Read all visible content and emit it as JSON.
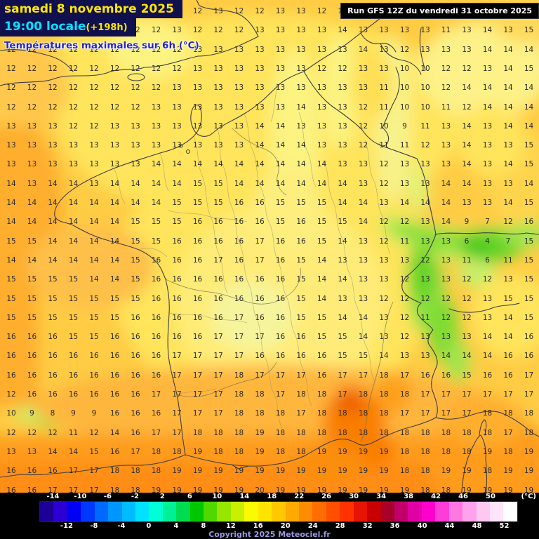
{
  "header": {
    "date": "samedi 8 novembre 2025",
    "time": "19:00 locale",
    "offset": "(+198h)",
    "subtitle": "Températures maximales sur 6h (°C)",
    "run": "Run GFS 12Z du vendredi 31 octobre 2025"
  },
  "legend": {
    "unit": "(°C)",
    "copyright": "Copyright 2025 Meteociel.fr",
    "range_min": -16,
    "range_max": 54,
    "top_labels": [
      -14,
      -10,
      -6,
      -2,
      2,
      6,
      10,
      14,
      18,
      22,
      26,
      30,
      34,
      38,
      42,
      46,
      50
    ],
    "bottom_labels": [
      -12,
      -8,
      -4,
      0,
      4,
      8,
      12,
      16,
      20,
      24,
      28,
      32,
      36,
      40,
      44,
      48,
      52
    ],
    "colors": [
      "#1c0096",
      "#2a00d4",
      "#0000f5",
      "#0038ff",
      "#006aff",
      "#0096ff",
      "#00bcff",
      "#00e2ff",
      "#00ffd4",
      "#00f096",
      "#00dc50",
      "#00c800",
      "#50d800",
      "#96e600",
      "#c8f000",
      "#fafa00",
      "#ffe400",
      "#ffc800",
      "#ffaa00",
      "#ff8c00",
      "#ff6e00",
      "#ff5000",
      "#ff3200",
      "#e61400",
      "#c80000",
      "#a8002a",
      "#c00068",
      "#e000a6",
      "#ff00cc",
      "#ff3cd6",
      "#ff78e2",
      "#ffa2ec",
      "#ffc8f2",
      "#ffe4fa",
      "#ffffff"
    ]
  },
  "grid": {
    "unit": "°C",
    "rows": [
      [
        12,
        13,
        12,
        13,
        12,
        12,
        12,
        12,
        12,
        12,
        13,
        12,
        12,
        13,
        13,
        12,
        13,
        13,
        13,
        13,
        13,
        13,
        13,
        13,
        14,
        13
      ],
      [
        13,
        12,
        12,
        12,
        12,
        12,
        12,
        12,
        13,
        12,
        12,
        12,
        13,
        13,
        13,
        13,
        14,
        13,
        13,
        13,
        13,
        11,
        13,
        14,
        13,
        15
      ],
      [
        12,
        12,
        12,
        12,
        12,
        12,
        12,
        12,
        12,
        13,
        13,
        13,
        13,
        13,
        13,
        13,
        13,
        14,
        13,
        12,
        13,
        13,
        13,
        14,
        14,
        14
      ],
      [
        12,
        12,
        12,
        12,
        12,
        12,
        12,
        12,
        12,
        13,
        13,
        13,
        13,
        13,
        13,
        12,
        12,
        13,
        13,
        10,
        10,
        12,
        12,
        13,
        14,
        15
      ],
      [
        12,
        12,
        12,
        12,
        12,
        12,
        12,
        12,
        13,
        13,
        13,
        13,
        13,
        13,
        13,
        13,
        13,
        13,
        11,
        10,
        10,
        12,
        14,
        14,
        14,
        14
      ],
      [
        12,
        12,
        12,
        12,
        12,
        12,
        12,
        13,
        13,
        13,
        13,
        13,
        13,
        13,
        14,
        13,
        13,
        12,
        11,
        10,
        10,
        11,
        12,
        14,
        14,
        14
      ],
      [
        13,
        13,
        13,
        12,
        12,
        13,
        13,
        13,
        13,
        13,
        13,
        13,
        14,
        14,
        13,
        13,
        13,
        12,
        10,
        9,
        11,
        13,
        14,
        13,
        14,
        14
      ],
      [
        13,
        13,
        13,
        13,
        13,
        13,
        13,
        13,
        13,
        13,
        13,
        13,
        14,
        14,
        14,
        13,
        13,
        12,
        11,
        11,
        12,
        13,
        14,
        13,
        13,
        15
      ],
      [
        13,
        13,
        13,
        13,
        13,
        13,
        13,
        14,
        14,
        14,
        14,
        14,
        14,
        14,
        14,
        14,
        13,
        13,
        12,
        13,
        13,
        13,
        14,
        13,
        14,
        15
      ],
      [
        14,
        13,
        14,
        14,
        13,
        14,
        14,
        14,
        14,
        15,
        15,
        14,
        14,
        14,
        14,
        14,
        14,
        13,
        12,
        13,
        13,
        14,
        14,
        13,
        13,
        14
      ],
      [
        14,
        14,
        14,
        14,
        14,
        14,
        14,
        14,
        15,
        15,
        15,
        16,
        16,
        15,
        15,
        15,
        14,
        14,
        13,
        14,
        14,
        14,
        13,
        13,
        14,
        15
      ],
      [
        14,
        14,
        14,
        14,
        14,
        14,
        15,
        15,
        15,
        16,
        16,
        16,
        16,
        15,
        16,
        15,
        15,
        14,
        12,
        12,
        13,
        14,
        9,
        7,
        12,
        16
      ],
      [
        15,
        15,
        14,
        14,
        14,
        14,
        15,
        15,
        16,
        16,
        16,
        16,
        17,
        16,
        16,
        15,
        14,
        13,
        12,
        11,
        13,
        13,
        6,
        4,
        7,
        15
      ],
      [
        14,
        14,
        14,
        14,
        14,
        14,
        15,
        16,
        16,
        16,
        17,
        16,
        17,
        16,
        15,
        14,
        13,
        13,
        13,
        13,
        12,
        13,
        11,
        6,
        11,
        15
      ],
      [
        15,
        15,
        15,
        15,
        14,
        14,
        15,
        16,
        16,
        16,
        16,
        16,
        16,
        16,
        15,
        14,
        14,
        13,
        13,
        12,
        13,
        13,
        12,
        12,
        13,
        15
      ],
      [
        15,
        15,
        15,
        15,
        15,
        15,
        15,
        16,
        16,
        16,
        16,
        16,
        16,
        16,
        15,
        14,
        13,
        13,
        12,
        12,
        12,
        12,
        12,
        13,
        15,
        15
      ],
      [
        15,
        15,
        15,
        15,
        15,
        15,
        16,
        16,
        16,
        16,
        16,
        17,
        16,
        16,
        15,
        15,
        14,
        14,
        13,
        12,
        11,
        12,
        12,
        13,
        14,
        15
      ],
      [
        16,
        16,
        16,
        15,
        15,
        16,
        16,
        16,
        16,
        16,
        17,
        17,
        17,
        16,
        16,
        15,
        15,
        14,
        13,
        12,
        13,
        13,
        13,
        14,
        14,
        16
      ],
      [
        16,
        16,
        16,
        16,
        16,
        16,
        16,
        16,
        17,
        17,
        17,
        17,
        16,
        16,
        16,
        16,
        15,
        15,
        14,
        13,
        13,
        14,
        14,
        14,
        16,
        16
      ],
      [
        16,
        16,
        16,
        16,
        16,
        16,
        16,
        16,
        17,
        17,
        17,
        18,
        17,
        17,
        17,
        16,
        17,
        17,
        18,
        17,
        16,
        16,
        15,
        16,
        16,
        17
      ],
      [
        12,
        16,
        16,
        16,
        16,
        16,
        16,
        17,
        17,
        17,
        17,
        18,
        18,
        17,
        18,
        18,
        17,
        18,
        18,
        18,
        17,
        17,
        17,
        17,
        17,
        17
      ],
      [
        10,
        9,
        8,
        9,
        9,
        16,
        16,
        16,
        17,
        17,
        17,
        18,
        18,
        18,
        17,
        18,
        18,
        18,
        18,
        17,
        17,
        17,
        17,
        18,
        18,
        18
      ],
      [
        12,
        12,
        12,
        11,
        12,
        14,
        16,
        17,
        17,
        18,
        18,
        18,
        19,
        18,
        18,
        18,
        18,
        18,
        18,
        18,
        18,
        18,
        18,
        18,
        17,
        18
      ],
      [
        13,
        13,
        14,
        14,
        15,
        16,
        17,
        18,
        18,
        19,
        18,
        18,
        19,
        18,
        18,
        19,
        19,
        19,
        19,
        18,
        18,
        18,
        18,
        19,
        18,
        19
      ],
      [
        16,
        16,
        16,
        17,
        17,
        18,
        18,
        18,
        19,
        19,
        19,
        19,
        19,
        19,
        19,
        19,
        19,
        19,
        19,
        18,
        18,
        19,
        19,
        18,
        19,
        19
      ],
      [
        16,
        16,
        17,
        17,
        17,
        18,
        18,
        19,
        19,
        19,
        19,
        19,
        20,
        19,
        19,
        19,
        19,
        19,
        19,
        19,
        18,
        18,
        19,
        19,
        19,
        19
      ]
    ]
  }
}
